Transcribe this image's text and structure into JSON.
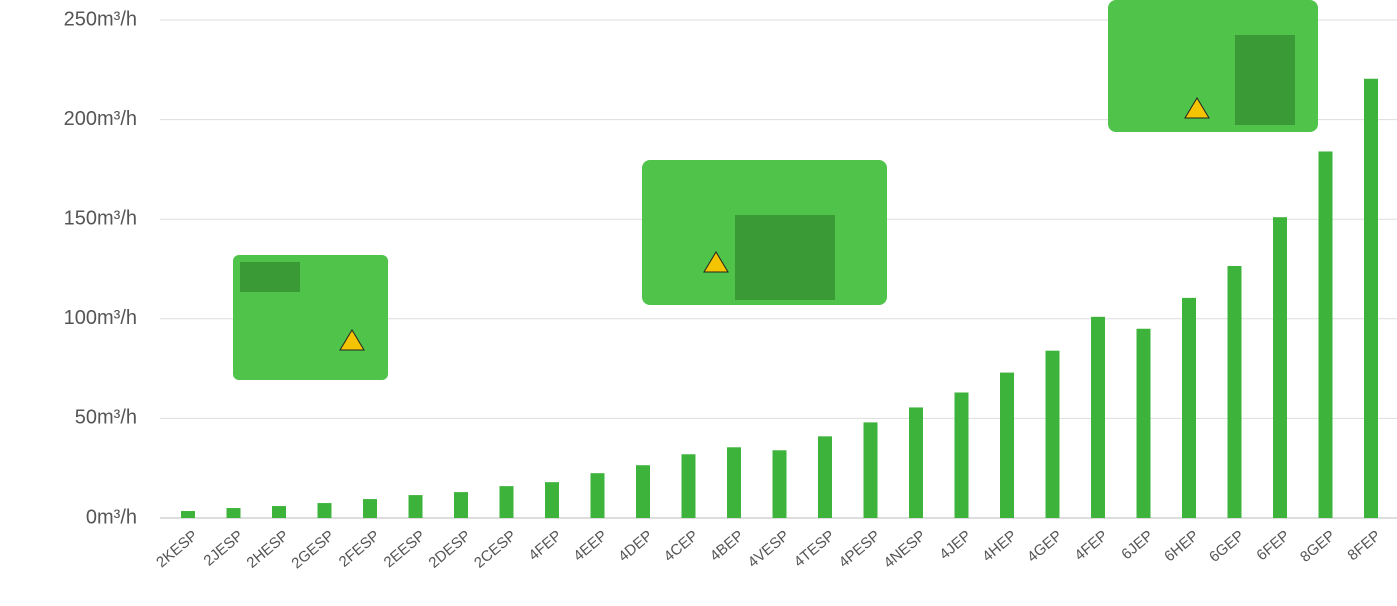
{
  "chart_data": {
    "type": "bar",
    "categories": [
      "2KESP",
      "2JESP",
      "2HESP",
      "2GESP",
      "2FESP",
      "2EESP",
      "2DESP",
      "2CESP",
      "4FEP",
      "4EEP",
      "4DEP",
      "4CEP",
      "4BEP",
      "4VESP",
      "4TESP",
      "4PESP",
      "4NESP",
      "4JEP",
      "4HEP",
      "4GEP",
      "4FEP",
      "6JEP",
      "6HEP",
      "6GEP",
      "6FEP",
      "8GEP",
      "8FEP"
    ],
    "values": [
      3.5,
      5,
      6,
      7.5,
      9.5,
      11.5,
      13,
      16,
      18,
      22.5,
      26.5,
      32,
      35.5,
      34,
      41,
      48,
      55.5,
      63,
      73,
      84,
      101,
      95,
      110.5,
      126.5,
      151,
      184,
      220.5
    ],
    "color": "#3db33b",
    "ylim": [
      0,
      250
    ],
    "yticks": [
      {
        "value": 0,
        "label": "0m³/h"
      },
      {
        "value": 50,
        "label": "50m³/h"
      },
      {
        "value": 100,
        "label": "100m³/h"
      },
      {
        "value": 150,
        "label": "150m³/h"
      },
      {
        "value": 200,
        "label": "200m³/h"
      },
      {
        "value": 250,
        "label": "250m³/h"
      }
    ],
    "grid": true
  }
}
